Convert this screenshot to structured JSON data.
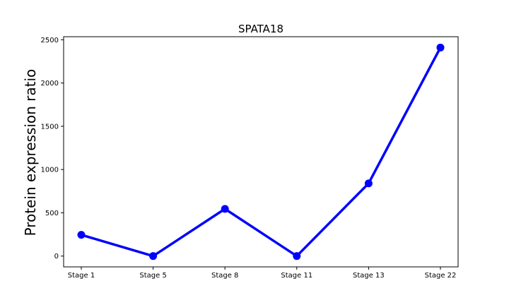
{
  "chart_data": {
    "type": "line",
    "title": "SPATA18",
    "xlabel": "",
    "ylabel": "Protein expression ratio",
    "categories": [
      "Stage 1",
      "Stage 5",
      "Stage 8",
      "Stage 11",
      "Stage 13",
      "Stage 22"
    ],
    "series": [
      {
        "values": [
          245,
          0,
          545,
          0,
          840,
          2410
        ]
      }
    ],
    "yticks": [
      "0",
      "500",
      "1000",
      "1500",
      "2000",
      "2500"
    ],
    "ytick_values": [
      0,
      500,
      1000,
      1500,
      2000,
      2500
    ],
    "ylim": [
      -125,
      2535
    ],
    "grid": false,
    "line_color": "#0000ff"
  }
}
